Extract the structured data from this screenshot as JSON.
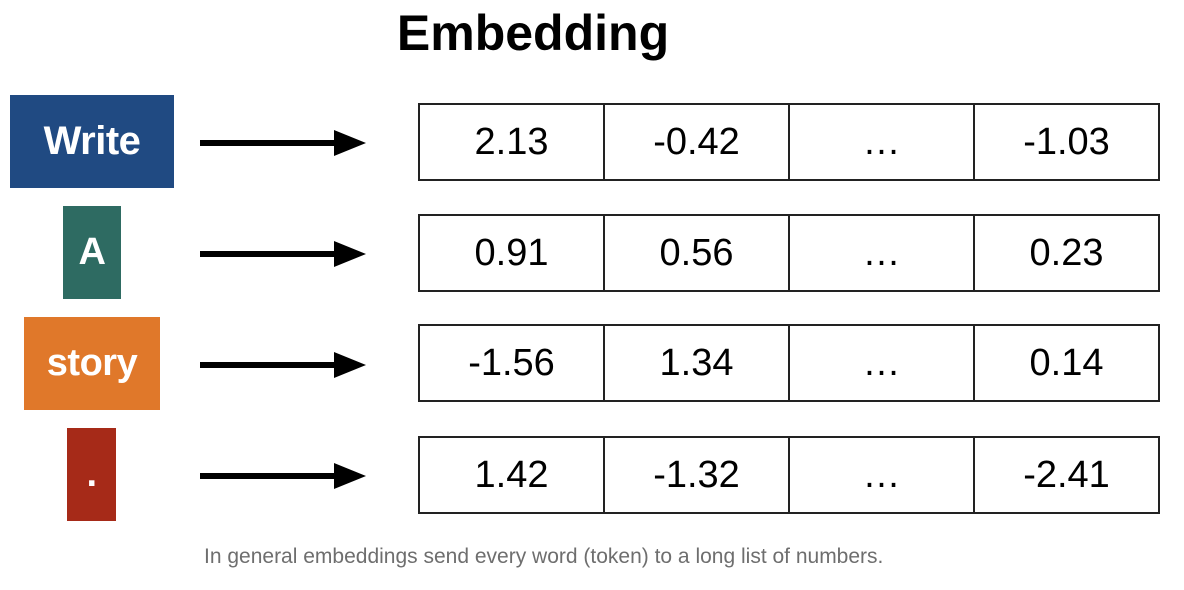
{
  "title": "Embedding",
  "rows": [
    {
      "token": "Write",
      "color": "#204a82",
      "values": [
        "2.13",
        "-0.42",
        "…",
        "-1.03"
      ]
    },
    {
      "token": "A",
      "color": "#2e6b62",
      "values": [
        "0.91",
        "0.56",
        "…",
        "0.23"
      ]
    },
    {
      "token": "story",
      "color": "#e0782a",
      "values": [
        "-1.56",
        "1.34",
        "…",
        "0.14"
      ]
    },
    {
      "token": ".",
      "color": "#a62a18",
      "values": [
        "1.42",
        "-1.32",
        "…",
        "-2.41"
      ]
    }
  ],
  "caption": "In general embeddings send every word (token) to a long list of numbers."
}
